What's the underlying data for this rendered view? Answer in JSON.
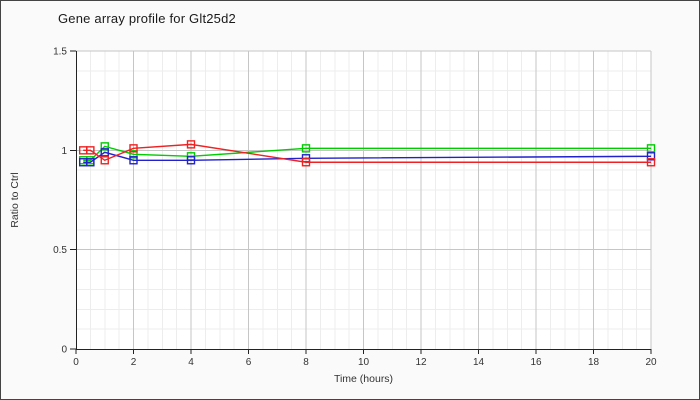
{
  "window": {
    "background": "#fafafa",
    "border_color": "#444444",
    "plot_background": "#ffffff"
  },
  "title": "Gene array profile for Glt25d2",
  "chart_data": {
    "type": "line",
    "title": "Gene array profile for Glt25d2",
    "xlabel": "Time (hours)",
    "ylabel": "Ratio to Ctrl",
    "xlim": [
      0,
      20
    ],
    "ylim": [
      0,
      1.5
    ],
    "grid": true,
    "legend": "none",
    "marker": "open-square",
    "x_tick_values": [
      0,
      2,
      4,
      6,
      8,
      10,
      12,
      14,
      16,
      18,
      20
    ],
    "x_tick_labels": [
      "0",
      "2",
      "4",
      "6",
      "8",
      "10",
      "12",
      "14",
      "16",
      "18",
      "20"
    ],
    "y_tick_values": [
      0,
      0.5,
      1,
      1.5
    ],
    "y_tick_labels": [
      "0",
      "0.5",
      "1",
      "1.5"
    ],
    "x_minor_step": 0.5,
    "y_minor_step": 0.1,
    "x": [
      0.25,
      0.5,
      1,
      2,
      4,
      8,
      20
    ],
    "series": [
      {
        "name": "green-series",
        "color": "#00cc00",
        "values": [
          0.95,
          0.95,
          1.02,
          0.98,
          0.97,
          1.01,
          1.01
        ]
      },
      {
        "name": "blue-series",
        "color": "#2222cc",
        "values": [
          0.94,
          0.94,
          0.99,
          0.95,
          0.95,
          0.96,
          0.97
        ]
      },
      {
        "name": "red-series",
        "color": "#ee2222",
        "values": [
          1.0,
          1.0,
          0.95,
          1.01,
          1.03,
          0.94,
          0.94
        ]
      }
    ],
    "colors": {
      "axis": "#222222",
      "tick_label": "#333333",
      "axis_title": "#333333",
      "grid_major": "#c6c6c6",
      "grid_minor": "#ededed"
    }
  }
}
